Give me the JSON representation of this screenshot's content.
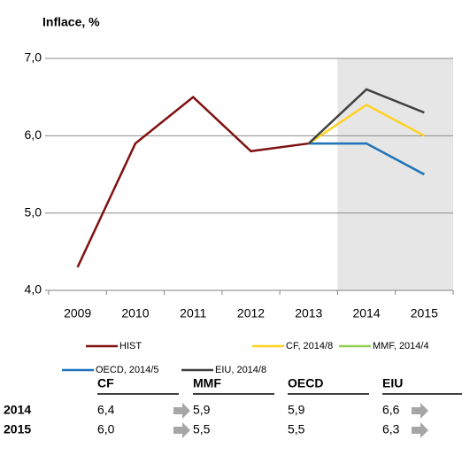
{
  "chart_data": {
    "type": "line",
    "title": "Inflace, %",
    "categories": [
      "2009",
      "2010",
      "2011",
      "2012",
      "2013",
      "2014",
      "2015"
    ],
    "series": [
      {
        "name": "HIST",
        "color": "#7f1111",
        "values": [
          4.3,
          5.9,
          6.5,
          5.8,
          5.9,
          null,
          null
        ]
      },
      {
        "name": "CF, 2014/8",
        "color": "#ffd21f",
        "values": [
          null,
          null,
          null,
          null,
          5.9,
          6.4,
          6.0
        ]
      },
      {
        "name": "MMF, 2014/4",
        "color": "#92d050",
        "values": [
          null,
          null,
          null,
          null,
          5.9,
          5.9,
          5.5
        ]
      },
      {
        "name": "OECD, 2014/5",
        "color": "#1f73bf",
        "values": [
          null,
          null,
          null,
          null,
          5.9,
          5.9,
          5.5
        ]
      },
      {
        "name": "EIU, 2014/8",
        "color": "#404040",
        "values": [
          null,
          null,
          null,
          null,
          5.9,
          6.6,
          6.3
        ]
      }
    ],
    "ylim": [
      4,
      7
    ],
    "yticks": [
      {
        "value": 4,
        "label": "4,0"
      },
      {
        "value": 5,
        "label": "5,0"
      },
      {
        "value": 6,
        "label": "6,0"
      },
      {
        "value": 7,
        "label": "7,0"
      }
    ],
    "grid": true,
    "shade": {
      "from_category_index": 5,
      "color": "#e6e6e6"
    }
  },
  "table": {
    "columns": [
      "CF",
      "MMF",
      "OECD",
      "EIU"
    ],
    "rows": [
      {
        "label": "2014",
        "cells": [
          "6,4",
          "5,9",
          "5,9",
          "6,6"
        ]
      },
      {
        "label": "2015",
        "cells": [
          "6,0",
          "5,5",
          "5,5",
          "6,3"
        ]
      }
    ]
  }
}
